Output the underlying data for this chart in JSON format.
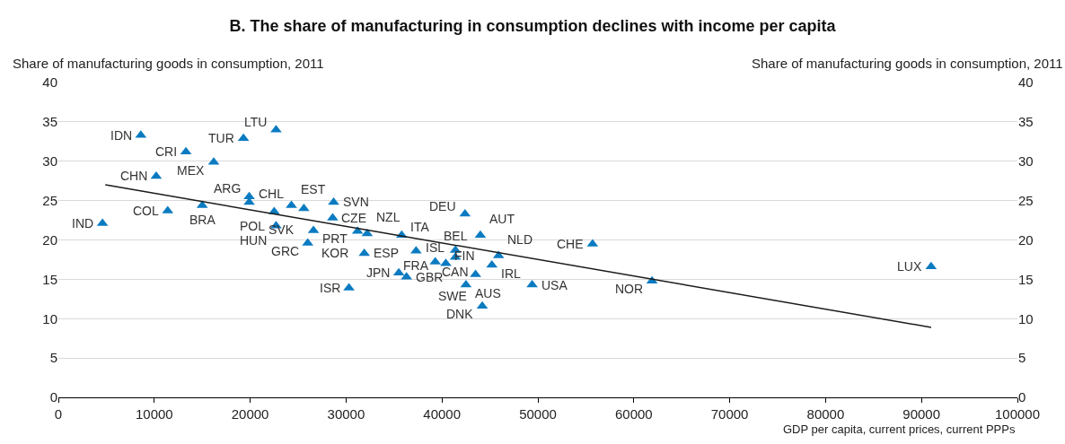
{
  "chart_data": {
    "type": "scatter",
    "title": "B. The share of manufacturing in consumption declines with income per capita",
    "ylabel": "Share of manufacturing goods in consumption, 2011",
    "y2label": "Share of manufacturing goods in consumption, 2011",
    "xlabel": "GDP per capita, current prices, current PPPs",
    "xlim": [
      0,
      100000
    ],
    "xticks": [
      0,
      10000,
      20000,
      30000,
      40000,
      50000,
      60000,
      70000,
      80000,
      90000,
      100000
    ],
    "ylim": [
      0,
      40
    ],
    "yticks": [
      0,
      5,
      10,
      15,
      20,
      25,
      30,
      35,
      40
    ],
    "y2lim": [
      0,
      40
    ],
    "y2ticks": [
      0,
      5,
      10,
      15,
      20,
      25,
      30,
      35,
      40
    ],
    "grid": "y",
    "series": [
      {
        "marker": "triangle",
        "color": "#0a7bc1",
        "x": [
          4600,
          8600,
          13300,
          10200,
          16200,
          19300,
          22700,
          11400,
          15000,
          19900,
          19900,
          22500,
          24300,
          25600,
          28700,
          28600,
          22700,
          26600,
          26000,
          31200,
          32200,
          35800,
          31900,
          30300,
          35500,
          36300,
          37300,
          41400,
          41400,
          39300,
          40400,
          45900,
          45200,
          43500,
          42500,
          42400,
          44000,
          44200,
          49400,
          55700,
          61900,
          91000
        ],
        "values": [
          22.1,
          33.3,
          31.2,
          28.1,
          29.9,
          32.9,
          34.0,
          23.7,
          24.4,
          25.5,
          24.8,
          23.6,
          24.4,
          24.0,
          24.8,
          22.8,
          21.8,
          21.2,
          19.6,
          21.1,
          20.8,
          20.6,
          18.3,
          13.9,
          15.8,
          15.3,
          18.6,
          18.7,
          17.8,
          17.2,
          17.0,
          18.0,
          16.8,
          15.6,
          14.3,
          23.3,
          20.6,
          11.6,
          14.3,
          19.5,
          14.8,
          16.6
        ]
      },
      {
        "type": "line",
        "color": "#1a1a1a",
        "x": [
          4900,
          91000
        ],
        "values": [
          27.0,
          8.9
        ]
      }
    ],
    "annotations": [
      {
        "text": "IND",
        "x": 4600,
        "y": 22.1
      },
      {
        "text": "IDN",
        "x": 8600,
        "y": 33.3
      },
      {
        "text": "CRI",
        "x": 13300,
        "y": 31.2
      },
      {
        "text": "CHN",
        "x": 10200,
        "y": 28.1
      },
      {
        "text": "MEX",
        "x": 16200,
        "y": 29.9
      },
      {
        "text": "TUR",
        "x": 19300,
        "y": 32.9
      },
      {
        "text": "LTU",
        "x": 22700,
        "y": 34.0
      },
      {
        "text": "COL",
        "x": 11400,
        "y": 23.7
      },
      {
        "text": "BRA",
        "x": 15000,
        "y": 24.4
      },
      {
        "text": "ARG",
        "x": 19900,
        "y": 25.5
      },
      {
        "text": "CHL",
        "x": 19900,
        "y": 24.8
      },
      {
        "text": "POL",
        "x": 22500,
        "y": 23.6
      },
      {
        "text": "EST",
        "x": 24300,
        "y": 24.4
      },
      {
        "text": "SVK",
        "x": 25600,
        "y": 24.0
      },
      {
        "text": "SVN",
        "x": 28700,
        "y": 24.8
      },
      {
        "text": "CZE",
        "x": 28600,
        "y": 22.8
      },
      {
        "text": "HUN",
        "x": 22700,
        "y": 21.8
      },
      {
        "text": "PRT",
        "x": 26600,
        "y": 21.2
      },
      {
        "text": "GRC",
        "x": 26000,
        "y": 19.6
      },
      {
        "text": "KOR",
        "x": 31200,
        "y": 21.1
      },
      {
        "text": "NZL",
        "x": 32200,
        "y": 20.8
      },
      {
        "text": "ITA",
        "x": 35800,
        "y": 20.6
      },
      {
        "text": "ESP",
        "x": 31900,
        "y": 18.3
      },
      {
        "text": "ISR",
        "x": 30300,
        "y": 13.9
      },
      {
        "text": "JPN",
        "x": 35500,
        "y": 15.8
      },
      {
        "text": "GBR",
        "x": 36300,
        "y": 15.3
      },
      {
        "text": "FRA",
        "x": 37300,
        "y": 18.6
      },
      {
        "text": "BEL",
        "x": 41400,
        "y": 18.7
      },
      {
        "text": "CAN",
        "x": 41400,
        "y": 17.8
      },
      {
        "text": "ISL",
        "x": 39300,
        "y": 17.2
      },
      {
        "text": "FIN",
        "x": 40400,
        "y": 17.0
      },
      {
        "text": "NLD",
        "x": 45900,
        "y": 18.0
      },
      {
        "text": "IRL",
        "x": 45200,
        "y": 16.8
      },
      {
        "text": "SWE",
        "x": 43500,
        "y": 15.6
      },
      {
        "text": "AUS",
        "x": 42500,
        "y": 14.3
      },
      {
        "text": "DEU",
        "x": 42400,
        "y": 23.3
      },
      {
        "text": "AUT",
        "x": 44000,
        "y": 20.6
      },
      {
        "text": "DNK",
        "x": 44200,
        "y": 11.6
      },
      {
        "text": "USA",
        "x": 49400,
        "y": 14.3
      },
      {
        "text": "CHE",
        "x": 55700,
        "y": 19.5
      },
      {
        "text": "NOR",
        "x": 61900,
        "y": 14.8
      },
      {
        "text": "LUX",
        "x": 91000,
        "y": 16.6
      }
    ]
  }
}
